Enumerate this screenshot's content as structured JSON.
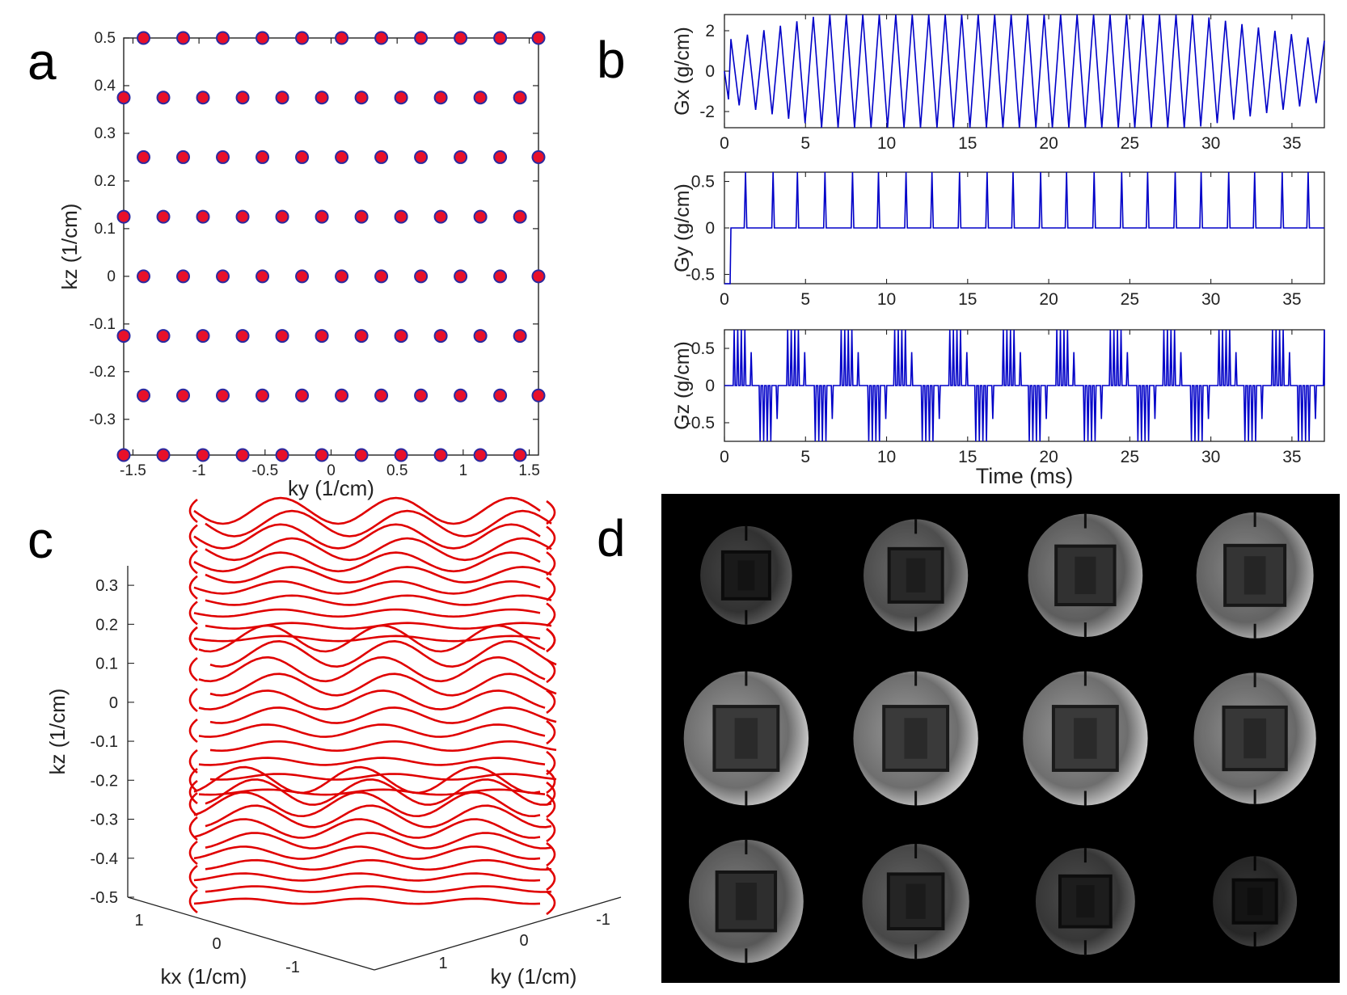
{
  "panels": {
    "a": "a",
    "b": "b",
    "c": "c",
    "d": "d"
  },
  "colors": {
    "point_fill": "#e8102a",
    "point_edge": "#2a2aa0",
    "waveform": "#0000c8",
    "trajectory": "#e00000",
    "image_bg": "#000000"
  },
  "chart_data": [
    {
      "id": "a",
      "type": "scatter",
      "xlabel": "ky (1/cm)",
      "ylabel": "kz (1/cm)",
      "xlim": [
        -1.57,
        1.57
      ],
      "ylim": [
        -0.375,
        0.5
      ],
      "xticks": [
        -1.5,
        -1,
        -0.5,
        0,
        0.5,
        1,
        1.5
      ],
      "xticklabels": [
        "-1.5",
        "-1",
        "-0.5",
        "0",
        "0.5",
        "1",
        "1.5"
      ],
      "yticks": [
        0.5,
        0.4,
        0.3,
        0.2,
        0.1,
        0,
        -0.1,
        -0.2,
        -0.3
      ],
      "yticklabels": [
        "0.5",
        "0.4",
        "0.3",
        "0.2",
        "0.1",
        "0",
        "-0.1",
        "-0.2",
        "-0.3"
      ],
      "grid": false,
      "rows": [
        {
          "kz": 0.5,
          "ky": [
            -1.42,
            -1.12,
            -0.82,
            -0.52,
            -0.22,
            0.08,
            0.38,
            0.68,
            0.98,
            1.28,
            1.57
          ]
        },
        {
          "kz": 0.375,
          "ky": [
            -1.57,
            -1.27,
            -0.97,
            -0.67,
            -0.37,
            -0.07,
            0.23,
            0.53,
            0.83,
            1.13,
            1.43
          ]
        },
        {
          "kz": 0.25,
          "ky": [
            -1.42,
            -1.12,
            -0.82,
            -0.52,
            -0.22,
            0.08,
            0.38,
            0.68,
            0.98,
            1.28,
            1.57
          ]
        },
        {
          "kz": 0.125,
          "ky": [
            -1.57,
            -1.27,
            -0.97,
            -0.67,
            -0.37,
            -0.07,
            0.23,
            0.53,
            0.83,
            1.13,
            1.43
          ]
        },
        {
          "kz": 0,
          "ky": [
            -1.42,
            -1.12,
            -0.82,
            -0.52,
            -0.22,
            0.08,
            0.38,
            0.68,
            0.98,
            1.28,
            1.57
          ]
        },
        {
          "kz": -0.125,
          "ky": [
            -1.57,
            -1.27,
            -0.97,
            -0.67,
            -0.37,
            -0.07,
            0.23,
            0.53,
            0.83,
            1.13,
            1.43
          ]
        },
        {
          "kz": -0.25,
          "ky": [
            -1.42,
            -1.12,
            -0.82,
            -0.52,
            -0.22,
            0.08,
            0.38,
            0.68,
            0.98,
            1.28,
            1.57
          ]
        },
        {
          "kz": -0.375,
          "ky": [
            -1.57,
            -1.27,
            -0.97,
            -0.67,
            -0.37,
            -0.07,
            0.23,
            0.53,
            0.83,
            1.13,
            1.43
          ]
        }
      ]
    },
    {
      "id": "b-gx",
      "type": "line",
      "ylabel": "Gx (g/cm)",
      "xlim": [
        0,
        37
      ],
      "ylim": [
        -2.8,
        2.8
      ],
      "xticks": [
        0,
        5,
        10,
        15,
        20,
        25,
        30,
        35
      ],
      "xticklabels": [
        "0",
        "5",
        "10",
        "15",
        "20",
        "25",
        "30",
        "35"
      ],
      "yticks": [
        2,
        0,
        -2
      ],
      "yticklabels": [
        "2",
        "0",
        "-2"
      ],
      "waveform": "triangular, ~36 cycles, amplitude rising from ~1.5 to 2.8 g/cm over 0-6 ms, flat to ~29 ms, then falling to ~1.5 g/cm at 37 ms",
      "amplitude_envelope": {
        "t": [
          0,
          6,
          29,
          37
        ],
        "amp": [
          1.5,
          2.8,
          2.8,
          1.5
        ]
      },
      "cycles": 36
    },
    {
      "id": "b-gy",
      "type": "line",
      "ylabel": "Gy (g/cm)",
      "xlim": [
        0,
        37
      ],
      "ylim": [
        -0.6,
        0.6
      ],
      "xticks": [
        0,
        5,
        10,
        15,
        20,
        25,
        30,
        35
      ],
      "xticklabels": [
        "0",
        "5",
        "10",
        "15",
        "20",
        "25",
        "30",
        "35"
      ],
      "yticks": [
        0.5,
        0,
        -0.5
      ],
      "yticklabels": [
        "0.5",
        "0",
        "-0.5"
      ],
      "prephaser": {
        "t": [
          0,
          0.35
        ],
        "value": -0.6
      },
      "blip_times": [
        1.3,
        3.0,
        4.5,
        6.2,
        7.9,
        9.5,
        11.2,
        12.8,
        14.5,
        16.2,
        17.8,
        19.5,
        21.1,
        22.8,
        24.5,
        26.1,
        27.8,
        29.4,
        31.1,
        32.7,
        34.4,
        36.0
      ],
      "blip_amplitude": 0.6
    },
    {
      "id": "b-gz",
      "type": "line",
      "xlabel": "Time (ms)",
      "ylabel": "Gz (g/cm)",
      "xlim": [
        0,
        37
      ],
      "ylim": [
        -0.75,
        0.75
      ],
      "xticks": [
        0,
        5,
        10,
        15,
        20,
        25,
        30,
        35
      ],
      "xticklabels": [
        "0",
        "5",
        "10",
        "15",
        "20",
        "25",
        "30",
        "35"
      ],
      "yticks": [
        0.5,
        0,
        -0.5
      ],
      "yticklabels": [
        "0.5",
        "0",
        "-0.5"
      ],
      "group_times": [
        0.6,
        2.2,
        3.9,
        5.6,
        7.2,
        8.9,
        10.5,
        12.2,
        13.9,
        15.5,
        17.2,
        18.8,
        20.5,
        22.2,
        23.8,
        25.5,
        27.1,
        28.8,
        30.5,
        32.1,
        33.8,
        35.4,
        37.0
      ],
      "group_sign": [
        1,
        -1,
        1,
        -1,
        1,
        -1,
        1,
        -1,
        1,
        -1,
        1,
        -1,
        1,
        -1,
        1,
        -1,
        1,
        -1,
        1,
        -1,
        1,
        -1,
        1
      ],
      "group_amplitude": 0.75
    },
    {
      "id": "c",
      "type": "line",
      "plot": "3d trajectory",
      "xlabel": "kx (1/cm)",
      "ylabel": "ky (1/cm)",
      "zlabel": "kz (1/cm)",
      "xticklabels": [
        "1",
        "0",
        "-1"
      ],
      "yticklabels": [
        "1",
        "0",
        "-1"
      ],
      "zticks": [
        0.3,
        0.2,
        0.1,
        0,
        -0.1,
        -0.2,
        -0.3,
        -0.4,
        -0.5
      ],
      "zticklabels": [
        "0.3",
        "0.2",
        "0.1",
        "0",
        "-0.1",
        "-0.2",
        "-0.3",
        "-0.4",
        "-0.5"
      ],
      "zlim": [
        -0.5,
        0.35
      ],
      "trajectory": "stack of wave-encoded (sinusoidal kx) readout lines, 3 blocks along kz, lines spanning ky -1.5 to 1.5"
    }
  ],
  "image_grid": {
    "id": "d",
    "rows": 3,
    "cols": 4,
    "intensity": [
      [
        0.45,
        0.7,
        0.85,
        0.9
      ],
      [
        1.0,
        1.0,
        1.0,
        0.95
      ],
      [
        0.8,
        0.65,
        0.5,
        0.35
      ]
    ],
    "scale": [
      [
        0.72,
        0.82,
        0.9,
        0.92
      ],
      [
        0.98,
        0.98,
        0.98,
        0.96
      ],
      [
        0.9,
        0.84,
        0.78,
        0.66
      ]
    ]
  }
}
